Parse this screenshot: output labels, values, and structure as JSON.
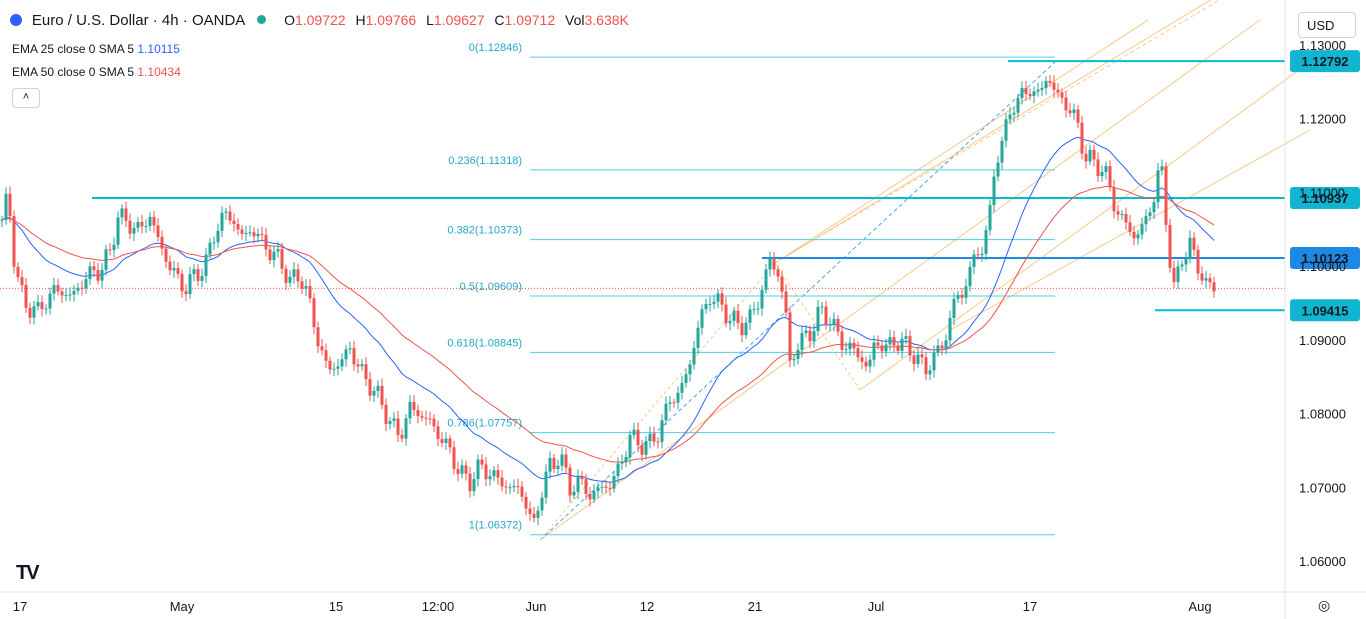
{
  "header": {
    "title": "Euro / U.S. Dollar · 4h · OANDA",
    "open_label": "O",
    "open": "1.09722",
    "high_label": "H",
    "high": "1.09766",
    "low_label": "L",
    "low": "1.09627",
    "close_label": "C",
    "close": "1.09712",
    "vol_label": "Vol",
    "vol": "3.638K"
  },
  "indicators": [
    {
      "label": "EMA 25 close 0 SMA 5",
      "value": "1.10115",
      "color": "#2962ff"
    },
    {
      "label": "EMA 50 close 0 SMA 5",
      "value": "1.10434",
      "color": "#ef5350"
    }
  ],
  "currency_select": "USD",
  "collapse_glyph": "˄",
  "logo_text": "TV",
  "colors": {
    "up": "#26a69a",
    "down": "#ef5350",
    "fib": "#4dd0e1",
    "level": "#00bcd4",
    "pitchfork": "#f7c98b"
  },
  "chart_data": {
    "type": "candlestick",
    "ylim": [
      1.0565,
      1.1335
    ],
    "yticks": [
      "1.13000",
      "1.12000",
      "1.11000",
      "1.10000",
      "1.09000",
      "1.08000",
      "1.07000",
      "1.06000"
    ],
    "xticks": [
      "17",
      "May",
      "15",
      "12:00",
      "Jun",
      "12",
      "21",
      "Jul",
      "17",
      "Aug"
    ],
    "fib_levels": [
      {
        "ratio": "0",
        "price": 1.12846,
        "label": "0(1.12846)"
      },
      {
        "ratio": "0.236",
        "price": 1.11318,
        "label": "0.236(1.11318)"
      },
      {
        "ratio": "0.382",
        "price": 1.10373,
        "label": "0.382(1.10373)"
      },
      {
        "ratio": "0.5",
        "price": 1.09609,
        "label": "0.5(1.09609)"
      },
      {
        "ratio": "0.618",
        "price": 1.08845,
        "label": "0.618(1.08845)"
      },
      {
        "ratio": "0.786",
        "price": 1.07757,
        "label": "0.786(1.07757)"
      },
      {
        "ratio": "1",
        "price": 1.06372,
        "label": "1(1.06372)"
      }
    ],
    "price_levels": [
      {
        "price": 1.12792,
        "label": "1.12792"
      },
      {
        "price": 1.10937,
        "label": "1.10937"
      },
      {
        "price": 1.10123,
        "label": "1.10123"
      },
      {
        "price": 1.09415,
        "label": "1.09415"
      }
    ],
    "last_price": 1.09712,
    "path_points": [
      [
        0,
        1.105
      ],
      [
        8,
        1.11
      ],
      [
        15,
        1.1
      ],
      [
        24,
        1.095
      ],
      [
        38,
        1.094
      ],
      [
        55,
        1.097
      ],
      [
        72,
        1.096
      ],
      [
        88,
        1.099
      ],
      [
        100,
        1.0995
      ],
      [
        110,
        1.102
      ],
      [
        118,
        1.107
      ],
      [
        127,
        1.106
      ],
      [
        140,
        1.105
      ],
      [
        150,
        1.107
      ],
      [
        160,
        1.103
      ],
      [
        170,
        1.1
      ],
      [
        185,
        1.097
      ],
      [
        195,
        1.099
      ],
      [
        205,
        1.1
      ],
      [
        215,
        1.105
      ],
      [
        225,
        1.107
      ],
      [
        232,
        1.107
      ],
      [
        240,
        1.104
      ],
      [
        250,
        1.105
      ],
      [
        260,
        1.104
      ],
      [
        270,
        1.102
      ],
      [
        280,
        1.101
      ],
      [
        290,
        1.098
      ],
      [
        300,
        1.099
      ],
      [
        308,
        1.096
      ],
      [
        318,
        1.09
      ],
      [
        328,
        1.086
      ],
      [
        340,
        1.087
      ],
      [
        350,
        1.089
      ],
      [
        360,
        1.086
      ],
      [
        370,
        1.084
      ],
      [
        380,
        1.082
      ],
      [
        390,
        1.079
      ],
      [
        400,
        1.077
      ],
      [
        410,
        1.081
      ],
      [
        420,
        1.08
      ],
      [
        430,
        1.079
      ],
      [
        440,
        1.077
      ],
      [
        450,
        1.075
      ],
      [
        460,
        1.072
      ],
      [
        470,
        1.071
      ],
      [
        480,
        1.073
      ],
      [
        490,
        1.072
      ],
      [
        500,
        1.071
      ],
      [
        510,
        1.07
      ],
      [
        520,
        1.07
      ],
      [
        527,
        1.0675
      ],
      [
        533,
        1.0645
      ],
      [
        540,
        1.069
      ],
      [
        550,
        1.073
      ],
      [
        560,
        1.0745
      ],
      [
        570,
        1.07
      ],
      [
        580,
        1.071
      ],
      [
        590,
        1.069
      ],
      [
        600,
        1.07
      ],
      [
        610,
        1.0705
      ],
      [
        620,
        1.073
      ],
      [
        630,
        1.077
      ],
      [
        640,
        1.076
      ],
      [
        650,
        1.076
      ],
      [
        660,
        1.078
      ],
      [
        670,
        1.082
      ],
      [
        680,
        1.083
      ],
      [
        690,
        1.087
      ],
      [
        700,
        1.093
      ],
      [
        710,
        1.096
      ],
      [
        720,
        1.095
      ],
      [
        730,
        1.093
      ],
      [
        740,
        1.092
      ],
      [
        750,
        1.093
      ],
      [
        760,
        1.096
      ],
      [
        770,
        1.101
      ],
      [
        778,
        1.099
      ],
      [
        785,
        1.095
      ],
      [
        790,
        1.087
      ],
      [
        800,
        1.09
      ],
      [
        810,
        1.091
      ],
      [
        820,
        1.094
      ],
      [
        830,
        1.093
      ],
      [
        840,
        1.09
      ],
      [
        850,
        1.089
      ],
      [
        860,
        1.088
      ],
      [
        868,
        1.086
      ],
      [
        875,
        1.09
      ],
      [
        885,
        1.089
      ],
      [
        895,
        1.09
      ],
      [
        905,
        1.0895
      ],
      [
        915,
        1.088
      ],
      [
        925,
        1.086
      ],
      [
        935,
        1.088
      ],
      [
        945,
        1.09
      ],
      [
        955,
        1.096
      ],
      [
        962,
        1.096
      ],
      [
        970,
        1.1
      ],
      [
        980,
        1.102
      ],
      [
        990,
        1.107
      ],
      [
        996,
        1.115
      ],
      [
        1005,
        1.118
      ],
      [
        1012,
        1.122
      ],
      [
        1020,
        1.123
      ],
      [
        1030,
        1.124
      ],
      [
        1040,
        1.1235
      ],
      [
        1048,
        1.126
      ],
      [
        1058,
        1.123
      ],
      [
        1068,
        1.122
      ],
      [
        1078,
        1.119
      ],
      [
        1085,
        1.115
      ],
      [
        1095,
        1.114
      ],
      [
        1105,
        1.113
      ],
      [
        1115,
        1.108
      ],
      [
        1125,
        1.106
      ],
      [
        1135,
        1.104
      ],
      [
        1145,
        1.106
      ],
      [
        1155,
        1.11
      ],
      [
        1160,
        1.114
      ],
      [
        1163,
        1.112
      ],
      [
        1168,
        1.103
      ],
      [
        1175,
        1.096
      ],
      [
        1180,
        1.101
      ],
      [
        1190,
        1.103
      ],
      [
        1198,
        1.1
      ],
      [
        1205,
        1.098
      ],
      [
        1214,
        1.097
      ]
    ]
  }
}
